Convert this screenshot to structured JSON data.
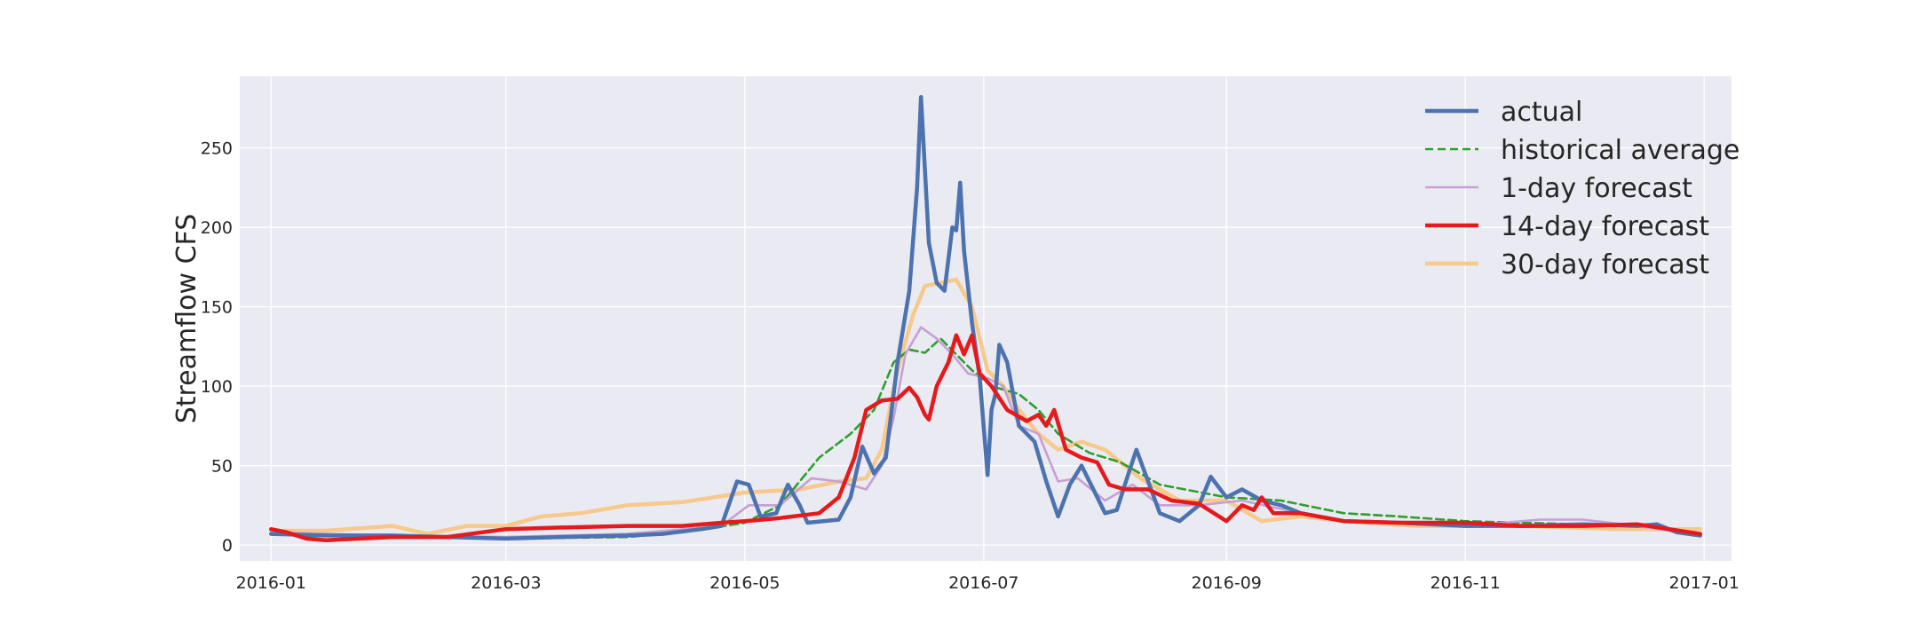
{
  "chart_data": {
    "type": "line",
    "title": "",
    "xlabel": "",
    "ylabel": "Streamflow CFS",
    "x_range": [
      "2015-12-24",
      "2017-01-08"
    ],
    "ylim": [
      -10,
      295
    ],
    "grid": true,
    "legend_position": "top-right",
    "x_ticks": [
      "2016-01",
      "2016-03",
      "2016-05",
      "2016-07",
      "2016-09",
      "2016-11",
      "2017-01"
    ],
    "y_ticks": [
      0,
      50,
      100,
      150,
      200,
      250
    ],
    "series": [
      {
        "name": "actual",
        "color": "#4c72b0",
        "style": "solid",
        "points": [
          [
            "2016-01-01",
            7
          ],
          [
            "2016-01-15",
            6
          ],
          [
            "2016-02-01",
            6
          ],
          [
            "2016-02-15",
            5
          ],
          [
            "2016-03-01",
            4
          ],
          [
            "2016-03-15",
            5
          ],
          [
            "2016-04-01",
            6
          ],
          [
            "2016-04-10",
            7
          ],
          [
            "2016-04-20",
            10
          ],
          [
            "2016-04-25",
            12
          ],
          [
            "2016-04-29",
            40
          ],
          [
            "2016-05-02",
            38
          ],
          [
            "2016-05-05",
            18
          ],
          [
            "2016-05-09",
            20
          ],
          [
            "2016-05-12",
            38
          ],
          [
            "2016-05-15",
            25
          ],
          [
            "2016-05-17",
            14
          ],
          [
            "2016-05-25",
            16
          ],
          [
            "2016-05-28",
            30
          ],
          [
            "2016-05-31",
            62
          ],
          [
            "2016-06-03",
            45
          ],
          [
            "2016-06-06",
            55
          ],
          [
            "2016-06-09",
            115
          ],
          [
            "2016-06-12",
            160
          ],
          [
            "2016-06-14",
            225
          ],
          [
            "2016-06-15",
            282
          ],
          [
            "2016-06-17",
            190
          ],
          [
            "2016-06-19",
            165
          ],
          [
            "2016-06-21",
            160
          ],
          [
            "2016-06-23",
            200
          ],
          [
            "2016-06-24",
            198
          ],
          [
            "2016-06-25",
            228
          ],
          [
            "2016-06-26",
            185
          ],
          [
            "2016-06-28",
            140
          ],
          [
            "2016-06-30",
            105
          ],
          [
            "2016-07-02",
            44
          ],
          [
            "2016-07-03",
            85
          ],
          [
            "2016-07-04",
            95
          ],
          [
            "2016-07-05",
            126
          ],
          [
            "2016-07-07",
            115
          ],
          [
            "2016-07-10",
            75
          ],
          [
            "2016-07-14",
            65
          ],
          [
            "2016-07-17",
            40
          ],
          [
            "2016-07-20",
            18
          ],
          [
            "2016-07-23",
            38
          ],
          [
            "2016-07-26",
            50
          ],
          [
            "2016-07-29",
            35
          ],
          [
            "2016-08-01",
            20
          ],
          [
            "2016-08-04",
            22
          ],
          [
            "2016-08-07",
            45
          ],
          [
            "2016-08-09",
            60
          ],
          [
            "2016-08-12",
            40
          ],
          [
            "2016-08-15",
            20
          ],
          [
            "2016-08-20",
            15
          ],
          [
            "2016-08-25",
            25
          ],
          [
            "2016-08-28",
            43
          ],
          [
            "2016-09-01",
            30
          ],
          [
            "2016-09-05",
            35
          ],
          [
            "2016-09-10",
            28
          ],
          [
            "2016-09-15",
            25
          ],
          [
            "2016-09-20",
            20
          ],
          [
            "2016-10-01",
            15
          ],
          [
            "2016-10-15",
            14
          ],
          [
            "2016-11-01",
            12
          ],
          [
            "2016-11-15",
            12
          ],
          [
            "2016-12-01",
            13
          ],
          [
            "2016-12-15",
            12
          ],
          [
            "2016-12-20",
            13
          ],
          [
            "2016-12-25",
            8
          ],
          [
            "2016-12-31",
            6
          ]
        ]
      },
      {
        "name": "historical average",
        "color": "#2ca02c",
        "style": "dashed",
        "points": [
          [
            "2016-01-01",
            8
          ],
          [
            "2016-02-01",
            5
          ],
          [
            "2016-03-01",
            4
          ],
          [
            "2016-04-01",
            5
          ],
          [
            "2016-04-15",
            8
          ],
          [
            "2016-05-01",
            14
          ],
          [
            "2016-05-10",
            25
          ],
          [
            "2016-05-20",
            55
          ],
          [
            "2016-05-28",
            70
          ],
          [
            "2016-06-03",
            85
          ],
          [
            "2016-06-08",
            115
          ],
          [
            "2016-06-12",
            123
          ],
          [
            "2016-06-16",
            121
          ],
          [
            "2016-06-20",
            130
          ],
          [
            "2016-06-24",
            120
          ],
          [
            "2016-06-28",
            110
          ],
          [
            "2016-07-03",
            100
          ],
          [
            "2016-07-10",
            95
          ],
          [
            "2016-07-15",
            85
          ],
          [
            "2016-07-20",
            70
          ],
          [
            "2016-07-28",
            58
          ],
          [
            "2016-08-05",
            52
          ],
          [
            "2016-08-15",
            38
          ],
          [
            "2016-09-01",
            30
          ],
          [
            "2016-09-15",
            28
          ],
          [
            "2016-10-01",
            20
          ],
          [
            "2016-10-15",
            18
          ],
          [
            "2016-11-01",
            15
          ],
          [
            "2016-11-15",
            14
          ],
          [
            "2016-12-01",
            13
          ],
          [
            "2016-12-15",
            12
          ],
          [
            "2016-12-31",
            7
          ]
        ]
      },
      {
        "name": "1-day forecast",
        "color": "#c79fd3",
        "style": "solid",
        "points": [
          [
            "2016-01-01",
            8
          ],
          [
            "2016-02-01",
            6
          ],
          [
            "2016-03-01",
            5
          ],
          [
            "2016-04-01",
            7
          ],
          [
            "2016-04-25",
            12
          ],
          [
            "2016-05-02",
            25
          ],
          [
            "2016-05-10",
            25
          ],
          [
            "2016-05-18",
            42
          ],
          [
            "2016-05-25",
            40
          ],
          [
            "2016-06-01",
            35
          ],
          [
            "2016-06-05",
            50
          ],
          [
            "2016-06-08",
            80
          ],
          [
            "2016-06-11",
            120
          ],
          [
            "2016-06-15",
            137
          ],
          [
            "2016-06-19",
            130
          ],
          [
            "2016-06-23",
            120
          ],
          [
            "2016-06-27",
            108
          ],
          [
            "2016-07-02",
            105
          ],
          [
            "2016-07-06",
            100
          ],
          [
            "2016-07-10",
            75
          ],
          [
            "2016-07-15",
            70
          ],
          [
            "2016-07-20",
            40
          ],
          [
            "2016-07-25",
            42
          ],
          [
            "2016-08-01",
            28
          ],
          [
            "2016-08-08",
            38
          ],
          [
            "2016-08-15",
            25
          ],
          [
            "2016-08-25",
            25
          ],
          [
            "2016-09-05",
            28
          ],
          [
            "2016-09-20",
            20
          ],
          [
            "2016-10-01",
            15
          ],
          [
            "2016-11-01",
            12
          ],
          [
            "2016-11-20",
            16
          ],
          [
            "2016-12-01",
            16
          ],
          [
            "2016-12-15",
            12
          ],
          [
            "2016-12-31",
            6
          ]
        ]
      },
      {
        "name": "14-day forecast",
        "color": "#e41a1c",
        "style": "solid",
        "points": [
          [
            "2016-01-01",
            10
          ],
          [
            "2016-01-05",
            8
          ],
          [
            "2016-01-10",
            4
          ],
          [
            "2016-01-15",
            3
          ],
          [
            "2016-02-01",
            5
          ],
          [
            "2016-02-15",
            5
          ],
          [
            "2016-03-01",
            10
          ],
          [
            "2016-03-15",
            11
          ],
          [
            "2016-04-01",
            12
          ],
          [
            "2016-04-15",
            12
          ],
          [
            "2016-04-25",
            14
          ],
          [
            "2016-05-01",
            15
          ],
          [
            "2016-05-10",
            17
          ],
          [
            "2016-05-20",
            20
          ],
          [
            "2016-05-25",
            30
          ],
          [
            "2016-05-29",
            55
          ],
          [
            "2016-06-01",
            85
          ],
          [
            "2016-06-05",
            91
          ],
          [
            "2016-06-09",
            92
          ],
          [
            "2016-06-12",
            99
          ],
          [
            "2016-06-14",
            93
          ],
          [
            "2016-06-16",
            82
          ],
          [
            "2016-06-17",
            79
          ],
          [
            "2016-06-19",
            100
          ],
          [
            "2016-06-22",
            115
          ],
          [
            "2016-06-24",
            132
          ],
          [
            "2016-06-26",
            120
          ],
          [
            "2016-06-28",
            132
          ],
          [
            "2016-06-30",
            108
          ],
          [
            "2016-07-03",
            100
          ],
          [
            "2016-07-07",
            85
          ],
          [
            "2016-07-12",
            78
          ],
          [
            "2016-07-15",
            82
          ],
          [
            "2016-07-17",
            75
          ],
          [
            "2016-07-19",
            85
          ],
          [
            "2016-07-22",
            60
          ],
          [
            "2016-07-26",
            55
          ],
          [
            "2016-07-30",
            52
          ],
          [
            "2016-08-02",
            38
          ],
          [
            "2016-08-06",
            35
          ],
          [
            "2016-08-12",
            35
          ],
          [
            "2016-08-18",
            28
          ],
          [
            "2016-08-25",
            26
          ],
          [
            "2016-09-01",
            15
          ],
          [
            "2016-09-05",
            25
          ],
          [
            "2016-09-08",
            22
          ],
          [
            "2016-09-10",
            30
          ],
          [
            "2016-09-13",
            20
          ],
          [
            "2016-09-20",
            20
          ],
          [
            "2016-10-01",
            15
          ],
          [
            "2016-10-15",
            14
          ],
          [
            "2016-11-01",
            14
          ],
          [
            "2016-11-15",
            12
          ],
          [
            "2016-12-01",
            12
          ],
          [
            "2016-12-15",
            13
          ],
          [
            "2016-12-31",
            7
          ]
        ]
      },
      {
        "name": "30-day forecast",
        "color": "#f7c98a",
        "style": "solid",
        "points": [
          [
            "2016-01-01",
            9
          ],
          [
            "2016-01-15",
            9
          ],
          [
            "2016-02-01",
            12
          ],
          [
            "2016-02-10",
            7
          ],
          [
            "2016-02-20",
            12
          ],
          [
            "2016-03-01",
            12
          ],
          [
            "2016-03-10",
            18
          ],
          [
            "2016-03-20",
            20
          ],
          [
            "2016-04-01",
            25
          ],
          [
            "2016-04-15",
            27
          ],
          [
            "2016-05-01",
            33
          ],
          [
            "2016-05-15",
            35
          ],
          [
            "2016-05-25",
            40
          ],
          [
            "2016-06-01",
            42
          ],
          [
            "2016-06-05",
            60
          ],
          [
            "2016-06-09",
            110
          ],
          [
            "2016-06-13",
            145
          ],
          [
            "2016-06-16",
            163
          ],
          [
            "2016-06-20",
            165
          ],
          [
            "2016-06-24",
            167
          ],
          [
            "2016-06-28",
            150
          ],
          [
            "2016-07-02",
            110
          ],
          [
            "2016-07-06",
            100
          ],
          [
            "2016-07-10",
            85
          ],
          [
            "2016-07-15",
            70
          ],
          [
            "2016-07-20",
            60
          ],
          [
            "2016-07-26",
            65
          ],
          [
            "2016-08-01",
            60
          ],
          [
            "2016-08-10",
            42
          ],
          [
            "2016-08-20",
            28
          ],
          [
            "2016-09-01",
            28
          ],
          [
            "2016-09-10",
            15
          ],
          [
            "2016-09-20",
            18
          ],
          [
            "2016-10-01",
            15
          ],
          [
            "2016-10-20",
            12
          ],
          [
            "2016-11-15",
            12
          ],
          [
            "2016-12-10",
            10
          ],
          [
            "2016-12-31",
            10
          ]
        ]
      }
    ]
  }
}
